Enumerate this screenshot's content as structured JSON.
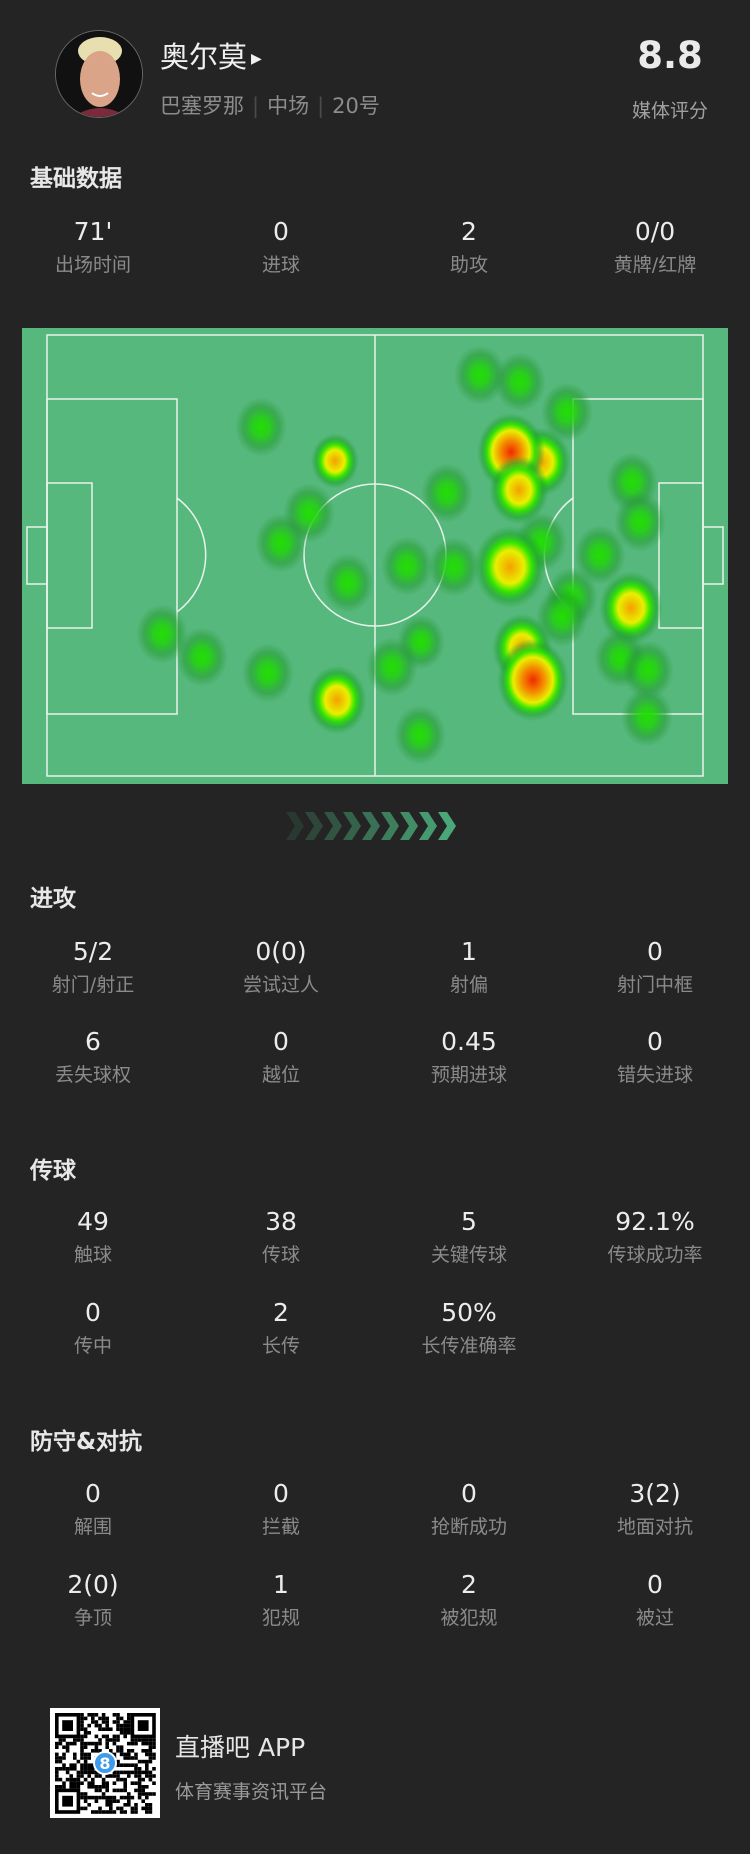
{
  "player": {
    "name": "奥尔莫",
    "team": "巴塞罗那",
    "position": "中场",
    "number": "20号",
    "rating": "8.8",
    "rating_label": "媒体评分"
  },
  "sections": [
    {
      "title": "基础数据",
      "rows": [
        [
          {
            "v": "71'",
            "l": "出场时间"
          },
          {
            "v": "0",
            "l": "进球"
          },
          {
            "v": "2",
            "l": "助攻"
          },
          {
            "v": "0/0",
            "l": "黄牌/红牌"
          }
        ]
      ]
    },
    {
      "title": "进攻",
      "rows": [
        [
          {
            "v": "5/2",
            "l": "射门/射正"
          },
          {
            "v": "0(0)",
            "l": "尝试过人"
          },
          {
            "v": "1",
            "l": "射偏"
          },
          {
            "v": "0",
            "l": "射门中框"
          }
        ],
        [
          {
            "v": "6",
            "l": "丢失球权"
          },
          {
            "v": "0",
            "l": "越位"
          },
          {
            "v": "0.45",
            "l": "预期进球"
          },
          {
            "v": "0",
            "l": "错失进球"
          }
        ]
      ]
    },
    {
      "title": "传球",
      "rows": [
        [
          {
            "v": "49",
            "l": "触球"
          },
          {
            "v": "38",
            "l": "传球"
          },
          {
            "v": "5",
            "l": "关键传球"
          },
          {
            "v": "92.1%",
            "l": "传球成功率"
          }
        ],
        [
          {
            "v": "0",
            "l": "传中"
          },
          {
            "v": "2",
            "l": "长传"
          },
          {
            "v": "50%",
            "l": "长传准确率"
          }
        ]
      ]
    },
    {
      "title": "防守&对抗",
      "rows": [
        [
          {
            "v": "0",
            "l": "解围"
          },
          {
            "v": "0",
            "l": "拦截"
          },
          {
            "v": "0",
            "l": "抢断成功"
          },
          {
            "v": "3(2)",
            "l": "地面对抗"
          }
        ],
        [
          {
            "v": "2(0)",
            "l": "争顶"
          },
          {
            "v": "1",
            "l": "犯规"
          },
          {
            "v": "2",
            "l": "被犯规"
          },
          {
            "v": "0",
            "l": "被过"
          }
        ]
      ]
    }
  ],
  "colors": {
    "background": "#242424",
    "pitch": "#57b87e",
    "arrow": "#4caf7d"
  },
  "footer": {
    "app_name": "直播吧 APP",
    "tagline": "体育赛事资讯平台",
    "qr_badge": "8"
  }
}
